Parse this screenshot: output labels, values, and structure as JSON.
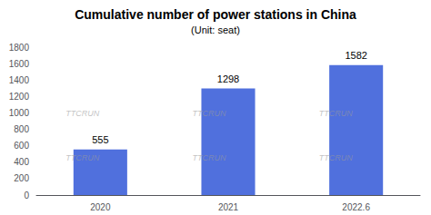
{
  "chart_data": {
    "type": "bar",
    "title": "Cumulative number of power stations in China",
    "subtitle": "(Unit: seat)",
    "categories": [
      "2020",
      "2021",
      "2022.6"
    ],
    "values": [
      555,
      1298,
      1582
    ],
    "ylim": [
      0,
      1800
    ],
    "yticks": [
      0,
      200,
      400,
      600,
      800,
      1000,
      1200,
      1400,
      1600,
      1800
    ],
    "grid": false,
    "data_labels": true,
    "annotations": [
      "TTCRUN",
      "TTCRUN",
      "TTCRUN",
      "TTCRUN",
      "TTCRUN",
      "TTCRUN"
    ]
  }
}
